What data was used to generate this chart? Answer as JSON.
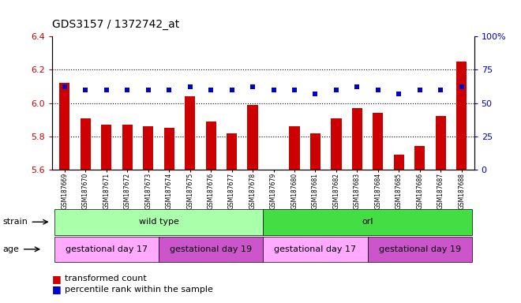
{
  "title": "GDS3157 / 1372742_at",
  "samples": [
    "GSM187669",
    "GSM187670",
    "GSM187671",
    "GSM187672",
    "GSM187673",
    "GSM187674",
    "GSM187675",
    "GSM187676",
    "GSM187677",
    "GSM187678",
    "GSM187679",
    "GSM187680",
    "GSM187681",
    "GSM187682",
    "GSM187683",
    "GSM187684",
    "GSM187685",
    "GSM187686",
    "GSM187687",
    "GSM187688"
  ],
  "bar_values": [
    6.12,
    5.91,
    5.87,
    5.87,
    5.86,
    5.85,
    6.04,
    5.89,
    5.82,
    5.99,
    5.55,
    5.86,
    5.82,
    5.91,
    5.97,
    5.94,
    5.69,
    5.74,
    5.92,
    6.25
  ],
  "dot_values": [
    62,
    60,
    60,
    60,
    60,
    60,
    62,
    60,
    60,
    62,
    60,
    60,
    57,
    60,
    62,
    60,
    57,
    60,
    60,
    62
  ],
  "bar_color": "#cc0000",
  "dot_color": "#0000cc",
  "ylim_left": [
    5.6,
    6.4
  ],
  "ylim_right": [
    0,
    100
  ],
  "yticks_left": [
    5.6,
    5.8,
    6.0,
    6.2,
    6.4
  ],
  "yticks_right": [
    0,
    25,
    50,
    75,
    100
  ],
  "grid_values": [
    5.8,
    6.0,
    6.2
  ],
  "strain_groups": [
    {
      "label": "wild type",
      "start": 0,
      "end": 10,
      "color": "#aaffaa"
    },
    {
      "label": "orl",
      "start": 10,
      "end": 20,
      "color": "#44dd44"
    }
  ],
  "age_groups": [
    {
      "label": "gestational day 17",
      "start": 0,
      "end": 5,
      "color": "#ffaaff"
    },
    {
      "label": "gestational day 19",
      "start": 5,
      "end": 10,
      "color": "#cc55cc"
    },
    {
      "label": "gestational day 17",
      "start": 10,
      "end": 15,
      "color": "#ffaaff"
    },
    {
      "label": "gestational day 19",
      "start": 15,
      "end": 20,
      "color": "#cc55cc"
    }
  ],
  "legend_items": [
    {
      "label": "transformed count",
      "color": "#cc0000"
    },
    {
      "label": "percentile rank within the sample",
      "color": "#0000cc"
    }
  ],
  "strain_label": "strain",
  "age_label": "age",
  "background_color": "#ffffff",
  "tick_label_color_left": "#cc0000",
  "tick_label_color_right": "#0000cc"
}
